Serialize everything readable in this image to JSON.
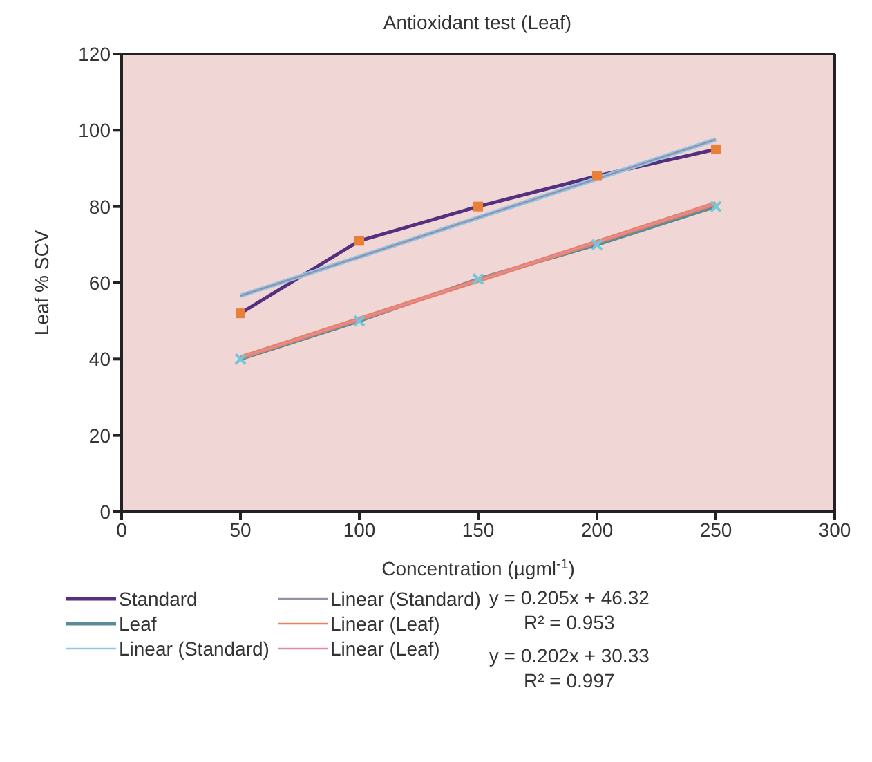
{
  "chart_data": {
    "type": "line",
    "title": "Antioxidant test (Leaf)",
    "xlabel": "Concentration (µgml$^{-1}$)",
    "ylabel": "Leaf % SCV",
    "x": [
      50,
      100,
      150,
      200,
      250
    ],
    "series": [
      {
        "name": "Standard",
        "color": "#55307f",
        "marker": "square",
        "values": [
          52,
          71,
          80,
          88,
          95
        ]
      },
      {
        "name": "Leaf",
        "color": "#5a8c98",
        "marker": "cross",
        "values": [
          40,
          50,
          61,
          70,
          80
        ]
      },
      {
        "name": "Linear (Standard)",
        "color": "#8ec8e8",
        "marker": "none",
        "values": [
          56.6,
          66.8,
          77.1,
          87.3,
          97.6
        ]
      },
      {
        "name": "Linear (Standard)",
        "color": "#9a8ea6",
        "marker": "none",
        "values": [
          56.6,
          66.8,
          77.1,
          87.3,
          97.6
        ]
      },
      {
        "name": "Linear (Leaf)",
        "color": "#e8825a",
        "marker": "none",
        "values": [
          40.4,
          50.5,
          60.6,
          70.7,
          80.8
        ]
      },
      {
        "name": "Linear (Leaf)",
        "color": "#e08aa8",
        "marker": "none",
        "values": [
          40.4,
          50.5,
          60.6,
          70.7,
          80.8
        ]
      }
    ],
    "xlim": [
      0,
      300
    ],
    "xticks": [
      0,
      50,
      100,
      150,
      200,
      250,
      300
    ],
    "ylim": [
      0,
      120
    ],
    "yticks": [
      0,
      20,
      40,
      60,
      80,
      100,
      120
    ],
    "legend": "bottom",
    "annotations": [
      "y = 0.205x + 46.32",
      "R² = 0.953",
      "y = 0.202x + 30.33",
      "R² = 0.997"
    ]
  }
}
